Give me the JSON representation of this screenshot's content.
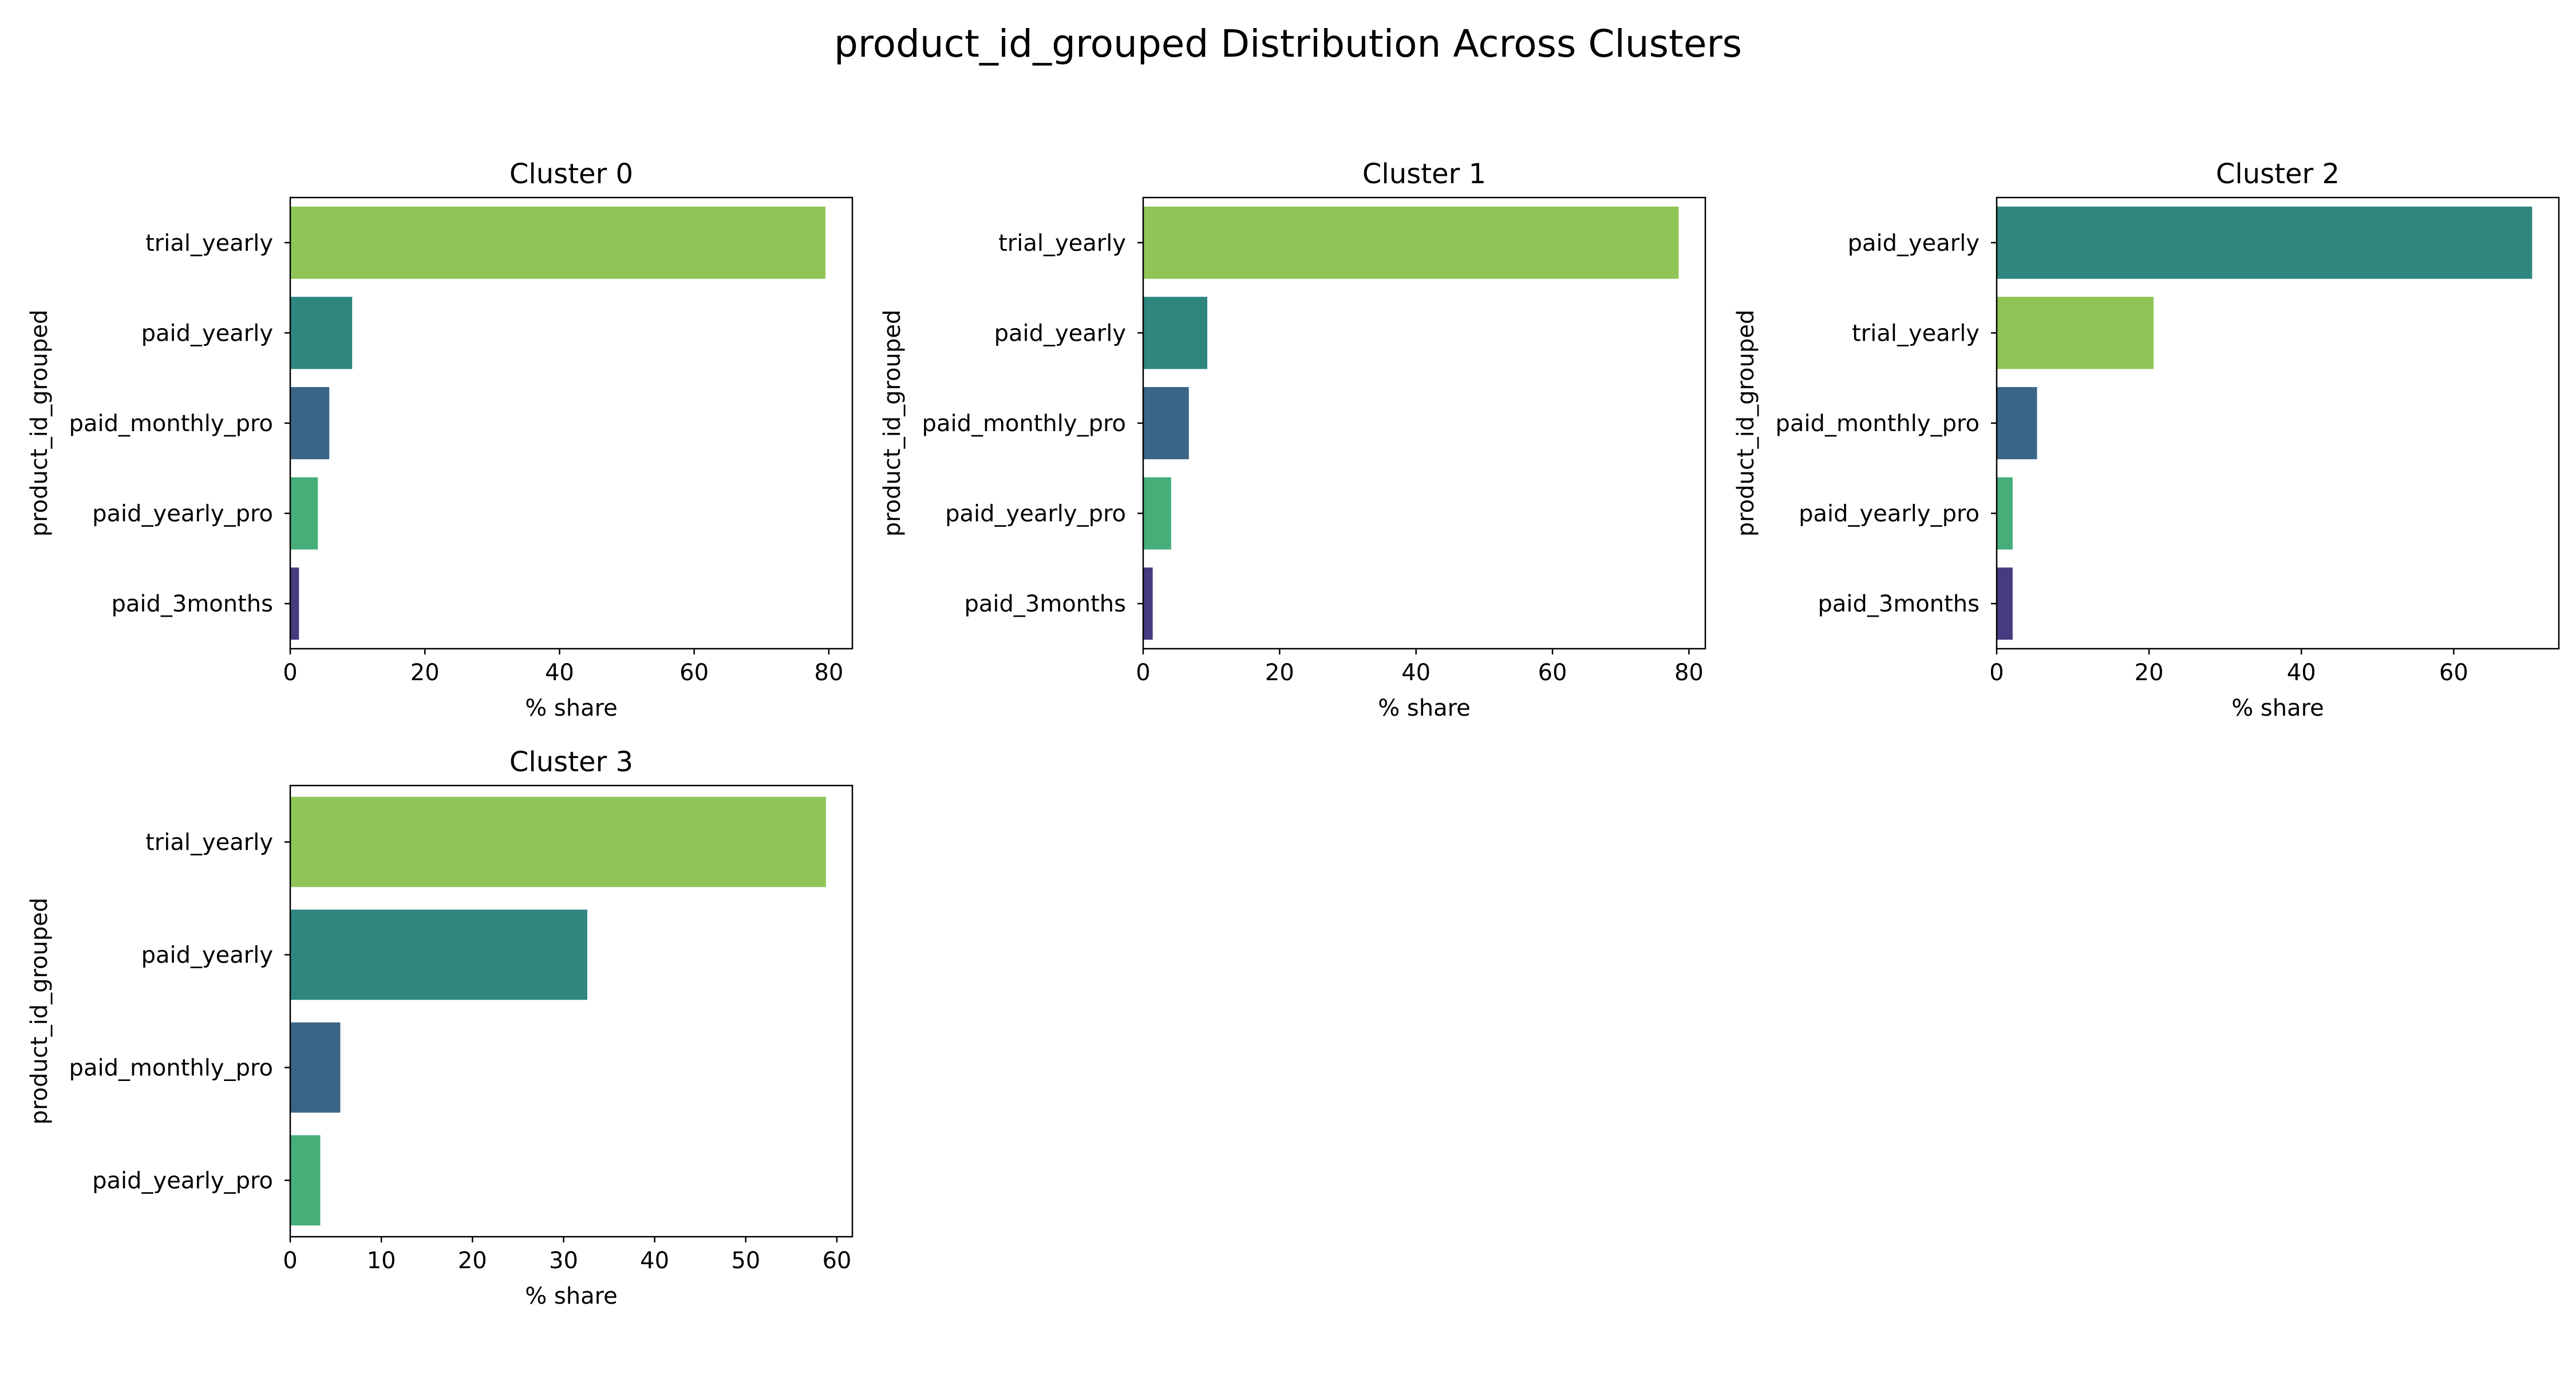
{
  "figure": {
    "title": "product_id_grouped Distribution Across Clusters"
  },
  "colors": {
    "trial_yearly": "#8fc556",
    "paid_yearly": "#2e867f",
    "paid_monthly_pro": "#3a6587",
    "paid_yearly_pro": "#45ae79",
    "paid_3months": "#463a80"
  },
  "chart_data": [
    {
      "type": "bar",
      "orientation": "horizontal",
      "title": "Cluster 0",
      "xlabel": "% share",
      "ylabel": "product_id_grouped",
      "categories": [
        "trial_yearly",
        "paid_yearly",
        "paid_monthly_pro",
        "paid_yearly_pro",
        "paid_3months"
      ],
      "values": [
        79.5,
        9.2,
        5.8,
        4.1,
        1.3
      ],
      "xlim": [
        0,
        83.5
      ],
      "xticks": [
        0,
        20,
        40,
        60,
        80
      ]
    },
    {
      "type": "bar",
      "orientation": "horizontal",
      "title": "Cluster 1",
      "xlabel": "% share",
      "ylabel": "product_id_grouped",
      "categories": [
        "trial_yearly",
        "paid_yearly",
        "paid_monthly_pro",
        "paid_yearly_pro",
        "paid_3months"
      ],
      "values": [
        78.5,
        9.4,
        6.7,
        4.1,
        1.4
      ],
      "xlim": [
        0,
        82.4
      ],
      "xticks": [
        0,
        20,
        40,
        60,
        80
      ]
    },
    {
      "type": "bar",
      "orientation": "horizontal",
      "title": "Cluster 2",
      "xlabel": "% share",
      "ylabel": "product_id_grouped",
      "categories": [
        "paid_yearly",
        "trial_yearly",
        "paid_monthly_pro",
        "paid_yearly_pro",
        "paid_3months"
      ],
      "values": [
        70.3,
        20.6,
        5.3,
        2.1,
        2.1
      ],
      "xlim": [
        0,
        73.8
      ],
      "xticks": [
        0,
        20,
        40,
        60
      ]
    },
    {
      "type": "bar",
      "orientation": "horizontal",
      "title": "Cluster 3",
      "xlabel": "% share",
      "ylabel": "product_id_grouped",
      "categories": [
        "trial_yearly",
        "paid_yearly",
        "paid_monthly_pro",
        "paid_yearly_pro"
      ],
      "values": [
        58.8,
        32.6,
        5.5,
        3.3
      ],
      "xlim": [
        0,
        61.7
      ],
      "xticks": [
        0,
        10,
        20,
        30,
        40,
        50,
        60
      ]
    }
  ]
}
